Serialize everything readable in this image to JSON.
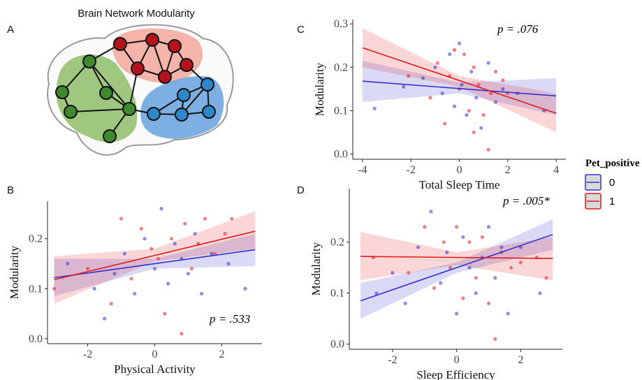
{
  "diagram": {
    "panel": "A",
    "title": "Brain Network Modularity"
  },
  "legend": {
    "title": "Pet_positive"
  },
  "chart_data": [
    {
      "type": "scatter",
      "panel": "B",
      "xlabel": "Physical Activity",
      "ylabel": "Modularity",
      "annotation": "p = .533",
      "xlim": [
        -3.2,
        3.2
      ],
      "ylim": [
        -0.01,
        0.275
      ],
      "xticks": [
        -2,
        0,
        2
      ],
      "yticks": [
        {
          "value": 0,
          "label": "0.0"
        },
        {
          "value": 0.1,
          "label": "0.1"
        },
        {
          "value": 0.2,
          "label": "0.2"
        }
      ],
      "series": [
        {
          "name": "0",
          "color": "#3030d0",
          "x": [
            -2.6,
            -1.8,
            -1.5,
            -1.2,
            -0.9,
            -0.6,
            -0.3,
            0,
            0.2,
            0.4,
            0.6,
            0.8,
            1.0,
            1.2,
            1.4,
            1.7,
            2.2,
            2.7
          ],
          "y": [
            0.15,
            0.1,
            0.04,
            0.13,
            0.17,
            0.09,
            0.2,
            0.14,
            0.26,
            0.11,
            0.19,
            0.16,
            0.13,
            0.21,
            0.09,
            0.17,
            0.15,
            0.1
          ],
          "fit": {
            "x": [
              -3,
              3
            ],
            "y": [
              0.122,
              0.178
            ]
          },
          "band": {
            "x": [
              -3,
              0,
              3
            ],
            "lower": [
              0.085,
              0.14,
              0.145
            ],
            "upper": [
              0.16,
              0.16,
              0.21
            ]
          }
        },
        {
          "name": "1",
          "color": "#e31a1c",
          "x": [
            -3,
            -2,
            -1.3,
            -1,
            -0.7,
            -0.4,
            -0.1,
            0.1,
            0.3,
            0.5,
            0.8,
            0.9,
            1.1,
            1.3,
            1.5,
            1.8,
            2.1,
            2.3
          ],
          "y": [
            0.1,
            0.14,
            0.07,
            0.24,
            0.12,
            0.22,
            0.18,
            0.16,
            0.05,
            0.2,
            0.01,
            0.23,
            0.14,
            0.19,
            0.24,
            0.17,
            0.21,
            0.24
          ],
          "fit": {
            "x": [
              -3,
              3
            ],
            "y": [
              0.118,
              0.215
            ]
          },
          "band": {
            "x": [
              -3,
              0,
              3
            ],
            "lower": [
              0.07,
              0.155,
              0.18
            ],
            "upper": [
              0.165,
              0.18,
              0.255
            ]
          }
        }
      ]
    },
    {
      "type": "scatter",
      "panel": "C",
      "xlabel": "Total Sleep Time",
      "ylabel": "Modularity",
      "annotation": "p = .076",
      "xlim": [
        -4.4,
        4.4
      ],
      "ylim": [
        -0.012,
        0.31
      ],
      "xticks": [
        -4,
        -2,
        0,
        2,
        4
      ],
      "yticks": [
        {
          "value": 0,
          "label": "0.0"
        },
        {
          "value": 0.1,
          "label": "0.1"
        },
        {
          "value": 0.2,
          "label": "0.2"
        },
        {
          "value": 0.3,
          "label": "0.3"
        }
      ],
      "series": [
        {
          "name": "0",
          "color": "#3030d0",
          "x": [
            -3.5,
            -2.3,
            -1.5,
            -1,
            -0.7,
            -0.4,
            -0.2,
            0,
            0.1,
            0.3,
            0.5,
            0.7,
            0.9,
            1.2,
            1.5,
            1.8,
            2.4,
            3.5
          ],
          "y": [
            0.105,
            0.155,
            0.175,
            0.2,
            0.14,
            0.23,
            0.11,
            0.255,
            0.16,
            0.09,
            0.19,
            0.13,
            0.06,
            0.21,
            0.12,
            0.15,
            0.14,
            0.1
          ],
          "fit": {
            "x": [
              -4,
              4
            ],
            "y": [
              0.168,
              0.134
            ]
          },
          "band": {
            "x": [
              -4,
              0,
              4
            ],
            "lower": [
              0.12,
              0.14,
              0.09
            ],
            "upper": [
              0.215,
              0.165,
              0.175
            ]
          }
        },
        {
          "name": "1",
          "color": "#e31a1c",
          "x": [
            -2.1,
            -1.2,
            -0.9,
            -0.6,
            -0.4,
            -0.2,
            0,
            0.2,
            0.4,
            0.6,
            0.8,
            1.0,
            1.2,
            1.3,
            1.5,
            1.8,
            2.0,
            0.6
          ],
          "y": [
            0.18,
            0.13,
            0.21,
            0.07,
            0.18,
            0.24,
            0.15,
            0.23,
            0.1,
            0.2,
            0.16,
            0.09,
            0.01,
            0.14,
            0.19,
            0.17,
            0.14,
            0.05
          ],
          "fit": {
            "x": [
              -4,
              4
            ],
            "y": [
              0.245,
              0.094
            ]
          },
          "band": {
            "x": [
              -4,
              0,
              4
            ],
            "lower": [
              0.2,
              0.155,
              0.05
            ],
            "upper": [
              0.29,
              0.18,
              0.14
            ]
          }
        }
      ]
    },
    {
      "type": "scatter",
      "panel": "D",
      "xlabel": "Sleep Efficiency",
      "ylabel": "Modularity",
      "annotation": "p = .005*",
      "xlim": [
        -3.35,
        3.3
      ],
      "ylim": [
        -0.01,
        0.305
      ],
      "xticks": [
        -2,
        0,
        2
      ],
      "yticks": [
        {
          "value": 0,
          "label": "0.0"
        },
        {
          "value": 0.1,
          "label": "0.1"
        },
        {
          "value": 0.2,
          "label": "0.2"
        }
      ],
      "series": [
        {
          "name": "0",
          "color": "#3030d0",
          "x": [
            -2.5,
            -2,
            -1.6,
            -1.2,
            -0.8,
            -0.5,
            -0.3,
            0,
            0.2,
            0.4,
            0.6,
            0.8,
            1.0,
            1.2,
            1.4,
            1.6,
            2.0,
            2.6
          ],
          "y": [
            0.1,
            0.14,
            0.08,
            0.19,
            0.26,
            0.12,
            0.18,
            0.06,
            0.21,
            0.15,
            0.1,
            0.17,
            0.23,
            0.13,
            0.19,
            0.06,
            0.19,
            0.1
          ],
          "fit": {
            "x": [
              -3,
              3
            ],
            "y": [
              0.085,
              0.215
            ]
          },
          "band": {
            "x": [
              -3,
              0,
              3
            ],
            "lower": [
              0.05,
              0.14,
              0.185
            ],
            "upper": [
              0.12,
              0.16,
              0.245
            ]
          }
        },
        {
          "name": "1",
          "color": "#e31a1c",
          "x": [
            -2.6,
            -1.5,
            -1,
            -0.7,
            -0.4,
            -0.2,
            0,
            0.2,
            0.4,
            0.6,
            0.8,
            1.0,
            1.2,
            1.4,
            1.7,
            2.0,
            2.5,
            2.8
          ],
          "y": [
            0.17,
            0.14,
            0.23,
            0.11,
            0.2,
            0.15,
            0.23,
            0.09,
            0.2,
            0.13,
            0.21,
            0.08,
            0.01,
            0.18,
            0.15,
            0.16,
            0.17,
            0.13
          ],
          "fit": {
            "x": [
              -3,
              3
            ],
            "y": [
              0.172,
              0.168
            ]
          },
          "band": {
            "x": [
              -3,
              0,
              3
            ],
            "lower": [
              0.125,
              0.155,
              0.125
            ],
            "upper": [
              0.22,
              0.18,
              0.21
            ]
          }
        }
      ]
    }
  ]
}
